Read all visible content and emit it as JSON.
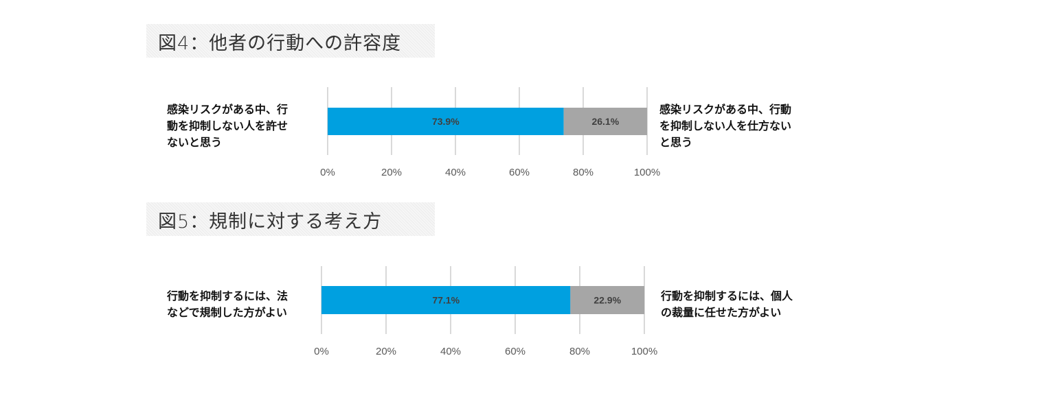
{
  "chart_data": [
    {
      "type": "bar",
      "stacked": true,
      "orientation": "horizontal",
      "title": "図4：他者の行動への許容度",
      "left_label": "感染リスクがある中、行動を抑制しない人を許せないと思う",
      "left_label_lines": [
        "感染リスクがある中、行",
        "動を抑制しない人を許せ",
        "ないと思う"
      ],
      "right_label": "感染リスクがある中、行動を抑制しない人を仕方ないと思う",
      "right_label_lines": [
        "感染リスクがある中、行動",
        "を抑制しない人を仕方ない",
        "と思う"
      ],
      "series": [
        {
          "name": "感染リスクがある中、行動を抑制しない人を許せないと思う",
          "values": [
            73.9
          ],
          "labels": [
            "73.9%"
          ],
          "color": "#00a0e0"
        },
        {
          "name": "感染リスクがある中、行動を抑制しない人を仕方ないと思う",
          "values": [
            26.1
          ],
          "labels": [
            "26.1%"
          ],
          "color": "#a6a6a6"
        }
      ],
      "xlim": [
        0,
        100
      ],
      "ticks": [
        "0%",
        "20%",
        "40%",
        "60%",
        "80%",
        "100%"
      ],
      "grid": true
    },
    {
      "type": "bar",
      "stacked": true,
      "orientation": "horizontal",
      "title": "図5：規制に対する考え方",
      "left_label": "行動を抑制するには、法などで規制した方がよい",
      "left_label_lines": [
        "行動を抑制するには、法",
        "などで規制した方がよい"
      ],
      "right_label": "行動を抑制するには、個人の裁量に任せた方がよい",
      "right_label_lines": [
        "行動を抑制するには、個人",
        "の裁量に任せた方がよい"
      ],
      "series": [
        {
          "name": "行動を抑制するには、法などで規制した方がよい",
          "values": [
            77.1
          ],
          "labels": [
            "77.1%"
          ],
          "color": "#00a0e0"
        },
        {
          "name": "行動を抑制するには、個人の裁量に任せた方がよい",
          "values": [
            22.9
          ],
          "labels": [
            "22.9%"
          ],
          "color": "#a6a6a6"
        }
      ],
      "xlim": [
        0,
        100
      ],
      "ticks": [
        "0%",
        "20%",
        "40%",
        "60%",
        "80%",
        "100%"
      ],
      "grid": true
    }
  ]
}
